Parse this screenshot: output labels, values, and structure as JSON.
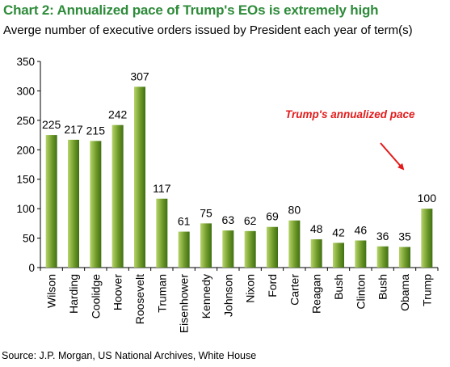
{
  "header": {
    "title": "Chart 2: Annualized pace of Trump's EOs is extremely high",
    "subtitle": "Averge number of executive orders issued by President each year of term(s)"
  },
  "footer": {
    "source": "Source: J.P. Morgan, US National Archives, White House"
  },
  "colors": {
    "title": "#2e8b3a",
    "bar_light": "#b7d46a",
    "bar_dark": "#3f6f12",
    "annotation": "#e31b1b"
  },
  "chart_data": {
    "type": "bar",
    "title": "Chart 2: Annualized pace of Trump's EOs is extremely high",
    "subtitle": "Averge number of executive orders issued by President each year of term(s)",
    "categories": [
      "Wilson",
      "Harding",
      "Coolidge",
      "Hoover",
      "Roosevelt",
      "Truman",
      "Eisenhower",
      "Kennedy",
      "Johnson",
      "Nixon",
      "Ford",
      "Carter",
      "Reagan",
      "Bush",
      "Clinton",
      "Bush",
      "Obama",
      "Trump"
    ],
    "values": [
      225,
      217,
      215,
      242,
      307,
      117,
      61,
      75,
      63,
      62,
      69,
      80,
      48,
      42,
      46,
      36,
      35,
      100
    ],
    "data_labels": [
      "225",
      "217",
      "215",
      "242",
      "307",
      "117",
      "61",
      "75",
      "63",
      "62",
      "69",
      "80",
      "48",
      "42",
      "46",
      "36",
      "35",
      "100"
    ],
    "ylim": [
      0,
      350
    ],
    "yticks": [
      0,
      50,
      100,
      150,
      200,
      250,
      300,
      350
    ],
    "ytick_labels": [
      "0",
      "50",
      "100",
      "150",
      "200",
      "250",
      "300",
      "350"
    ],
    "grid": false,
    "legend": "none",
    "annotation": {
      "text": "Trump's annualized pace",
      "target_category": "Trump"
    }
  }
}
